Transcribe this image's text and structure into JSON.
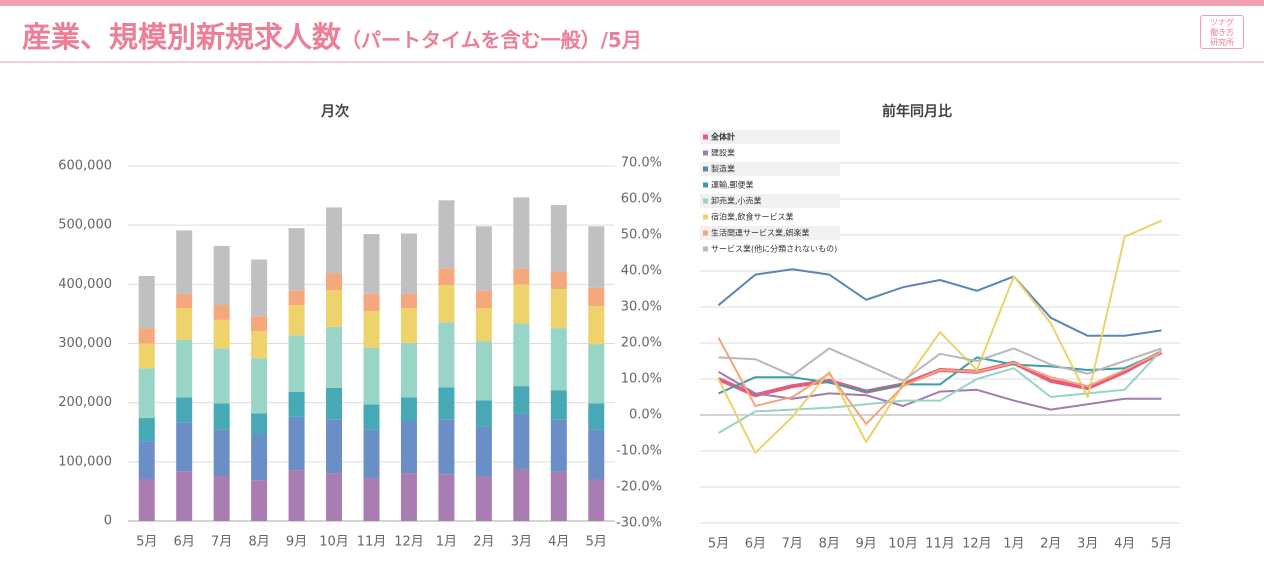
{
  "header": {
    "title": "産業、規模別新規求人数",
    "subtitle": "（パートタイムを含む一般）",
    "month": "/5月",
    "logo": [
      "ツナグ",
      "働き方",
      "研究所"
    ]
  },
  "chart_data": [
    {
      "type": "bar",
      "stacked": true,
      "title": "月次",
      "categories": [
        "5月",
        "6月",
        "7月",
        "8月",
        "9月",
        "10月",
        "11月",
        "12月",
        "1月",
        "2月",
        "3月",
        "4月",
        "5月"
      ],
      "ylim": [
        0,
        600000
      ],
      "yticks": [
        0,
        {
          "value": 100000,
          "label": "100,000"
        },
        {
          "value": 200000,
          "label": "200,000"
        },
        {
          "value": 300000,
          "label": "300,000"
        },
        {
          "value": 400000,
          "label": "400,000"
        },
        {
          "value": 500000,
          "label": "500,000"
        },
        {
          "value": 600000,
          "label": "600,000"
        }
      ],
      "grid": true,
      "series": [
        {
          "color": "#a97db1",
          "values": [
            71000,
            84000,
            76000,
            69000,
            86000,
            81000,
            72000,
            81000,
            79000,
            76000,
            88000,
            83000,
            71000
          ]
        },
        {
          "color": "#6a8fc6",
          "values": [
            64000,
            83000,
            79000,
            78000,
            90000,
            91000,
            82000,
            88000,
            93000,
            83000,
            93000,
            89000,
            83000
          ]
        },
        {
          "color": "#47a9b5",
          "values": [
            39000,
            42000,
            44000,
            35000,
            42000,
            53000,
            43000,
            40000,
            54000,
            45000,
            47000,
            49000,
            45000
          ]
        },
        {
          "color": "#98d5c6",
          "values": [
            84000,
            97000,
            93000,
            93000,
            96000,
            103000,
            96000,
            92000,
            110000,
            100000,
            106000,
            105000,
            100000
          ]
        },
        {
          "color": "#eed26b",
          "values": [
            42000,
            54000,
            48000,
            46000,
            51000,
            62000,
            62000,
            59000,
            63000,
            56000,
            66000,
            66000,
            64000
          ]
        },
        {
          "color": "#f5a77e",
          "values": [
            26000,
            24000,
            25000,
            25000,
            25000,
            29000,
            29000,
            24000,
            28000,
            29000,
            27000,
            30000,
            31000
          ]
        },
        {
          "color": "#c0c0c0",
          "values": [
            88000,
            107000,
            100000,
            96000,
            105000,
            111000,
            101000,
            102000,
            115000,
            109000,
            120000,
            112000,
            104000
          ]
        }
      ]
    },
    {
      "type": "line",
      "title": "前年同月比",
      "categories": [
        "5月",
        "6月",
        "7月",
        "8月",
        "9月",
        "10月",
        "11月",
        "12月",
        "1月",
        "2月",
        "3月",
        "4月",
        "5月"
      ],
      "ylim": [
        -30,
        70
      ],
      "yticks": [
        {
          "value": -30,
          "label": "-30.0%"
        },
        {
          "value": -20,
          "label": "-20.0%"
        },
        {
          "value": -10,
          "label": "-10.0%"
        },
        {
          "value": 0,
          "label": "0.0%"
        },
        {
          "value": 10,
          "label": "10.0%"
        },
        {
          "value": 20,
          "label": "20.0%"
        },
        {
          "value": 30,
          "label": "30.0%"
        },
        {
          "value": 40,
          "label": "40.0%"
        },
        {
          "value": 50,
          "label": "50.0%"
        },
        {
          "value": 60,
          "label": "60.0%"
        },
        {
          "value": 70,
          "label": "70.0%"
        }
      ],
      "grid": true,
      "legend": "upper-left",
      "series": [
        {
          "name": "全体計",
          "color": "#e65c7e",
          "values": [
            10,
            5.5,
            8,
            9.5,
            6.5,
            8.5,
            12.5,
            12,
            14.5,
            9.5,
            7.5,
            12,
            17.5
          ]
        },
        {
          "name": "建設業",
          "color": "#a07cb0",
          "values": [
            12,
            6,
            4.5,
            6,
            5.5,
            2.5,
            6.5,
            7,
            4,
            1.5,
            3,
            4.5,
            4.5
          ]
        },
        {
          "name": "製造業",
          "color": "#5b86b4",
          "values": [
            30.5,
            39,
            40.5,
            39,
            32,
            35.5,
            37.5,
            34.5,
            38.5,
            27,
            22,
            22,
            23.5
          ]
        },
        {
          "name": "運輸,郵便業",
          "color": "#3a9ea8",
          "values": [
            6,
            10.5,
            10.5,
            9,
            6.5,
            8.5,
            8.5,
            16,
            14,
            13.5,
            12.5,
            13,
            17.5
          ]
        },
        {
          "name": "卸売業,小売業",
          "color": "#96d4c4",
          "values": [
            -5,
            1,
            1.5,
            2,
            3,
            4,
            4,
            10,
            13,
            5,
            6,
            7,
            18
          ]
        },
        {
          "name": "宿泊業,飲食サービス業",
          "color": "#ebd26a",
          "values": [
            10,
            -10.5,
            -0.5,
            12,
            -7.5,
            8.5,
            23,
            12.5,
            38.5,
            25.5,
            5,
            49.5,
            54
          ]
        },
        {
          "name": "生活関連サービス業,娯楽業",
          "color": "#f4a57c",
          "values": [
            21.5,
            2.5,
            5,
            11.5,
            -2.5,
            8,
            12.5,
            12,
            14.5,
            10.5,
            8,
            12.5,
            17.5
          ]
        },
        {
          "name": "サービス業(他に分類されないもの)",
          "color": "#b8b8b8",
          "values": [
            16,
            15.5,
            11,
            18.5,
            14,
            9.5,
            17,
            15,
            18.5,
            14,
            11.5,
            15,
            18.5
          ]
        }
      ]
    }
  ]
}
